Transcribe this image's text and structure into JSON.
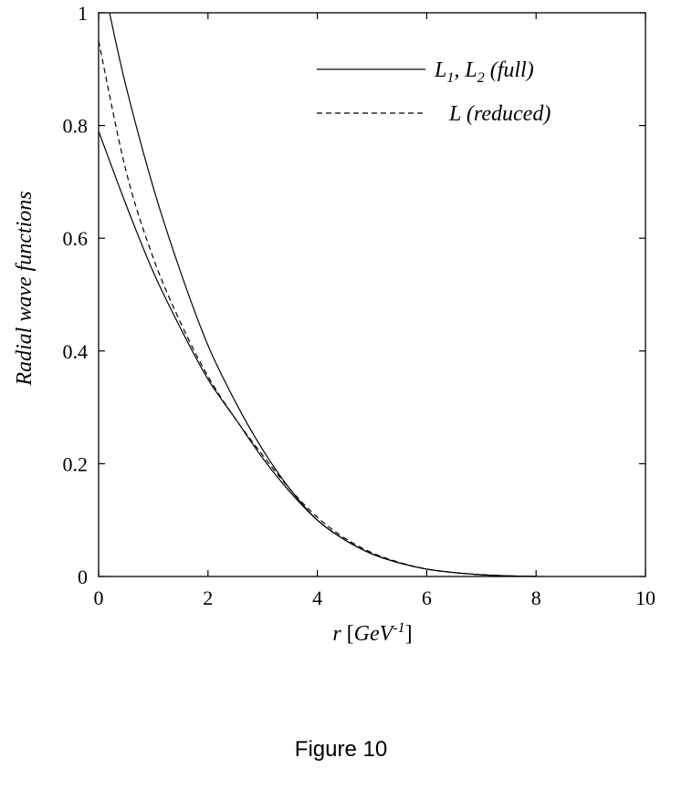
{
  "caption": "Figure 10",
  "chart_data": {
    "type": "line",
    "xlabel": {
      "main": "r ",
      "bracket_open": "[",
      "unit": "GeV",
      "sup": "-1",
      "bracket_close": "]"
    },
    "ylabel": "Radial wave functions",
    "xlim": [
      0,
      10
    ],
    "ylim": [
      0,
      1
    ],
    "xticks": [
      0,
      2,
      4,
      6,
      8,
      10
    ],
    "yticks": [
      0,
      0.2,
      0.4,
      0.6,
      0.8,
      1
    ],
    "xtick_labels": [
      "0",
      "2",
      "4",
      "6",
      "8",
      "10"
    ],
    "ytick_labels": [
      "0",
      "0.2",
      "0.4",
      "0.6",
      "0.8",
      "1"
    ],
    "grid": false,
    "legend_position": "top-right",
    "legend": [
      {
        "parts": [
          "L",
          "1",
          ", L",
          "2",
          " (full)"
        ],
        "style": "solid"
      },
      {
        "parts": [
          "L (reduced)"
        ],
        "style": "dashed"
      }
    ],
    "series": [
      {
        "style": "solid",
        "x": [
          0.2,
          0.5,
          1.0,
          1.5,
          2.0,
          2.5,
          3.0,
          3.5,
          4.0,
          4.5,
          5.0,
          5.5,
          6.0,
          6.5,
          7.0,
          7.5,
          8.0
        ],
        "y": [
          1.0,
          0.87,
          0.69,
          0.54,
          0.41,
          0.31,
          0.225,
          0.155,
          0.1,
          0.065,
          0.04,
          0.024,
          0.013,
          0.007,
          0.003,
          0.001,
          0.0
        ]
      },
      {
        "style": "solid",
        "x": [
          0.0,
          0.5,
          1.0,
          1.5,
          2.0,
          2.5,
          3.0,
          3.5,
          4.0,
          4.5,
          5.0,
          5.5,
          6.0,
          6.5,
          7.0,
          7.5,
          8.0
        ],
        "y": [
          0.79,
          0.66,
          0.54,
          0.44,
          0.35,
          0.28,
          0.21,
          0.15,
          0.1,
          0.065,
          0.04,
          0.024,
          0.013,
          0.007,
          0.003,
          0.001,
          0.0
        ]
      },
      {
        "style": "dashed",
        "x": [
          0.0,
          0.5,
          1.0,
          1.5,
          2.0,
          2.5,
          3.0,
          3.5,
          4.0,
          4.5,
          5.0,
          5.5,
          6.0,
          6.5,
          7.0,
          7.5,
          8.0
        ],
        "y": [
          0.95,
          0.72,
          0.565,
          0.45,
          0.355,
          0.28,
          0.215,
          0.155,
          0.105,
          0.068,
          0.042,
          0.025,
          0.013,
          0.007,
          0.003,
          0.001,
          0.0
        ]
      }
    ]
  }
}
